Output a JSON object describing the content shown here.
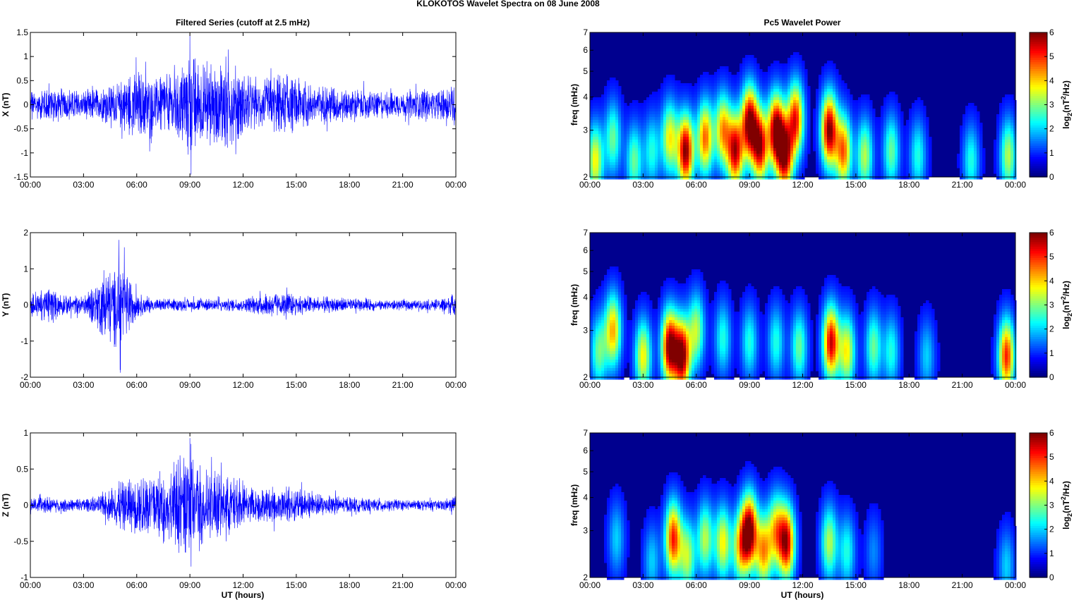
{
  "figure": {
    "suptitle": "KLOKOTOS Wavelet Spectra on 08 June      2008",
    "left_title": "Filtered Series (cutoff at 2.5 mHz)",
    "right_title": "Pc5 Wavelet Power",
    "xlabel": "UT (hours)"
  },
  "colors": {
    "trace": "#0000ff",
    "axis": "#000000",
    "grid_bg": "#ffffff"
  },
  "chart_data": [
    {
      "type": "line",
      "ylabel": "X (nT)",
      "xlim": [
        0,
        24
      ],
      "ylim": [
        -1.5,
        1.5
      ],
      "xticks": [
        "00:00",
        "03:00",
        "06:00",
        "09:00",
        "12:00",
        "15:00",
        "18:00",
        "21:00",
        "00:00"
      ],
      "yticks": [
        1.5,
        1,
        0.5,
        0,
        -0.5,
        -1,
        -1.5
      ],
      "ytick_labels": [
        "1.5",
        "1",
        "0.5",
        "0",
        "-0.5",
        "-1",
        "-1.5"
      ],
      "envelope_hours": [
        0,
        1,
        2,
        3,
        4,
        5,
        6,
        7,
        8,
        9,
        10,
        11,
        12,
        13,
        14,
        15,
        16,
        17,
        18,
        19,
        20,
        21,
        22,
        23,
        24
      ],
      "envelope_amplitude": [
        0.3,
        0.35,
        0.3,
        0.25,
        0.3,
        0.4,
        0.65,
        0.5,
        0.55,
        1.0,
        0.7,
        0.9,
        0.55,
        0.45,
        0.55,
        0.5,
        0.35,
        0.35,
        0.3,
        0.25,
        0.25,
        0.2,
        0.3,
        0.25,
        0.4
      ],
      "peak_max": 1.45,
      "peak_min": -1.45
    },
    {
      "type": "line",
      "ylabel": "Y (nT)",
      "xlim": [
        0,
        24
      ],
      "ylim": [
        -2,
        2
      ],
      "xticks": [
        "00:00",
        "03:00",
        "06:00",
        "09:00",
        "12:00",
        "15:00",
        "18:00",
        "21:00",
        "00:00"
      ],
      "yticks": [
        2,
        1,
        0,
        -1,
        -2
      ],
      "ytick_labels": [
        "2",
        "1",
        "0",
        "-1",
        "-2"
      ],
      "envelope_hours": [
        0,
        1,
        2,
        3,
        4,
        5,
        6,
        7,
        8,
        9,
        10,
        11,
        12,
        13,
        14,
        15,
        16,
        17,
        18,
        19,
        20,
        21,
        22,
        23,
        24
      ],
      "envelope_amplitude": [
        0.3,
        0.45,
        0.25,
        0.2,
        0.7,
        1.1,
        0.3,
        0.15,
        0.15,
        0.15,
        0.15,
        0.15,
        0.15,
        0.25,
        0.3,
        0.25,
        0.2,
        0.2,
        0.15,
        0.15,
        0.12,
        0.12,
        0.12,
        0.15,
        0.3
      ],
      "peak_max": 1.8,
      "peak_min": -1.8
    },
    {
      "type": "line",
      "ylabel": "Z (nT)",
      "xlim": [
        0,
        24
      ],
      "ylim": [
        -1,
        1
      ],
      "xticks": [
        "00:00",
        "03:00",
        "06:00",
        "09:00",
        "12:00",
        "15:00",
        "18:00",
        "21:00",
        "00:00"
      ],
      "yticks": [
        1,
        0.5,
        0,
        -0.5,
        -1
      ],
      "ytick_labels": [
        "1",
        "0.5",
        "0",
        "-0.5",
        "-1"
      ],
      "envelope_hours": [
        0,
        1,
        2,
        3,
        4,
        5,
        6,
        7,
        8,
        9,
        10,
        11,
        12,
        13,
        14,
        15,
        16,
        17,
        18,
        19,
        20,
        21,
        22,
        23,
        24
      ],
      "envelope_amplitude": [
        0.08,
        0.1,
        0.08,
        0.08,
        0.12,
        0.3,
        0.35,
        0.4,
        0.5,
        0.7,
        0.45,
        0.4,
        0.25,
        0.2,
        0.22,
        0.2,
        0.15,
        0.12,
        0.1,
        0.08,
        0.08,
        0.06,
        0.06,
        0.06,
        0.1
      ],
      "peak_max": 0.93,
      "peak_min": -0.85
    },
    {
      "type": "heatmap",
      "ylabel": "freq (mHz)",
      "xlim": [
        0,
        24
      ],
      "ylim": [
        2,
        7
      ],
      "yscale": "log",
      "xticks": [
        "00:00",
        "03:00",
        "06:00",
        "09:00",
        "12:00",
        "15:00",
        "18:00",
        "21:00",
        "00:00"
      ],
      "yticks": [
        2,
        3,
        4,
        5,
        6,
        7
      ],
      "colorbar": {
        "label": "log2(nT²/Hz)",
        "label_base": "log",
        "label_sub": "2",
        "label_mid": "(nT",
        "label_sup": "2",
        "label_end": "/Hz)",
        "ticks": [
          0,
          1,
          2,
          3,
          4,
          5,
          6
        ],
        "colormap": "jet"
      },
      "blobs": [
        {
          "t": 0.3,
          "f": 2.3,
          "p": 3.5
        },
        {
          "t": 1.3,
          "f": 2.8,
          "p": 2.5
        },
        {
          "t": 2.5,
          "f": 2.3,
          "p": 2.5
        },
        {
          "t": 3.5,
          "f": 2.5,
          "p": 2.0
        },
        {
          "t": 4.5,
          "f": 2.8,
          "p": 3.5
        },
        {
          "t": 5.4,
          "f": 2.5,
          "p": 6.0
        },
        {
          "t": 6.5,
          "f": 2.8,
          "p": 4.5
        },
        {
          "t": 7.5,
          "f": 3.0,
          "p": 4.0
        },
        {
          "t": 8.2,
          "f": 2.5,
          "p": 5.5
        },
        {
          "t": 9.0,
          "f": 3.2,
          "p": 6.0
        },
        {
          "t": 9.6,
          "f": 2.6,
          "p": 5.5
        },
        {
          "t": 10.5,
          "f": 3.0,
          "p": 6.0
        },
        {
          "t": 11.0,
          "f": 2.4,
          "p": 5.5
        },
        {
          "t": 11.6,
          "f": 3.3,
          "p": 5.0
        },
        {
          "t": 13.5,
          "f": 3.0,
          "p": 6.0
        },
        {
          "t": 14.3,
          "f": 2.5,
          "p": 4.5
        },
        {
          "t": 15.5,
          "f": 2.4,
          "p": 3.0
        },
        {
          "t": 17.0,
          "f": 2.5,
          "p": 2.5
        },
        {
          "t": 18.5,
          "f": 2.4,
          "p": 2.0
        },
        {
          "t": 21.5,
          "f": 2.3,
          "p": 2.0
        },
        {
          "t": 23.6,
          "f": 2.4,
          "p": 3.0
        }
      ]
    },
    {
      "type": "heatmap",
      "ylabel": "freq (mHz)",
      "xlim": [
        0,
        24
      ],
      "ylim": [
        2,
        7
      ],
      "yscale": "log",
      "xticks": [
        "00:00",
        "03:00",
        "06:00",
        "09:00",
        "12:00",
        "15:00",
        "18:00",
        "21:00",
        "00:00"
      ],
      "yticks": [
        2,
        3,
        4,
        5,
        6,
        7
      ],
      "colorbar": {
        "label": "log2(nT²/Hz)",
        "label_base": "log",
        "label_sub": "2",
        "label_mid": "(nT",
        "label_sup": "2",
        "label_end": "/Hz)",
        "ticks": [
          0,
          1,
          2,
          3,
          4,
          5,
          6
        ],
        "colormap": "jet"
      },
      "blobs": [
        {
          "t": 0.5,
          "f": 2.5,
          "p": 2.5
        },
        {
          "t": 1.3,
          "f": 3.0,
          "p": 4.0
        },
        {
          "t": 3.0,
          "f": 2.4,
          "p": 3.5
        },
        {
          "t": 4.5,
          "f": 2.6,
          "p": 6.0
        },
        {
          "t": 5.2,
          "f": 2.4,
          "p": 6.0
        },
        {
          "t": 6.0,
          "f": 3.0,
          "p": 3.0
        },
        {
          "t": 7.5,
          "f": 2.8,
          "p": 2.0
        },
        {
          "t": 9.0,
          "f": 2.7,
          "p": 2.0
        },
        {
          "t": 10.5,
          "f": 2.7,
          "p": 2.0
        },
        {
          "t": 11.8,
          "f": 2.6,
          "p": 2.5
        },
        {
          "t": 13.6,
          "f": 2.7,
          "p": 5.5
        },
        {
          "t": 14.5,
          "f": 2.5,
          "p": 3.5
        },
        {
          "t": 16.0,
          "f": 2.6,
          "p": 2.5
        },
        {
          "t": 17.0,
          "f": 2.5,
          "p": 2.0
        },
        {
          "t": 19.0,
          "f": 2.4,
          "p": 1.5
        },
        {
          "t": 23.5,
          "f": 2.4,
          "p": 5.0
        }
      ]
    },
    {
      "type": "heatmap",
      "ylabel": "freq (mHz)",
      "xlim": [
        0,
        24
      ],
      "ylim": [
        2,
        7
      ],
      "yscale": "log",
      "xticks": [
        "00:00",
        "03:00",
        "06:00",
        "09:00",
        "12:00",
        "15:00",
        "18:00",
        "21:00",
        "00:00"
      ],
      "yticks": [
        2,
        3,
        4,
        5,
        6,
        7
      ],
      "colorbar": {
        "label": "log2(nT²/Hz)",
        "label_base": "log",
        "label_sub": "2",
        "label_mid": "(nT",
        "label_sup": "2",
        "label_end": "/Hz)",
        "ticks": [
          0,
          1,
          2,
          3,
          4,
          5,
          6
        ],
        "colormap": "jet"
      },
      "blobs": [
        {
          "t": 1.5,
          "f": 2.8,
          "p": 1.5
        },
        {
          "t": 3.5,
          "f": 2.3,
          "p": 1.5
        },
        {
          "t": 4.7,
          "f": 2.8,
          "p": 5.0
        },
        {
          "t": 5.5,
          "f": 2.4,
          "p": 3.0
        },
        {
          "t": 6.5,
          "f": 2.8,
          "p": 3.0
        },
        {
          "t": 7.5,
          "f": 2.7,
          "p": 3.5
        },
        {
          "t": 8.5,
          "f": 2.6,
          "p": 3.5
        },
        {
          "t": 9.0,
          "f": 3.0,
          "p": 6.0
        },
        {
          "t": 9.8,
          "f": 2.5,
          "p": 4.0
        },
        {
          "t": 10.5,
          "f": 3.0,
          "p": 3.5
        },
        {
          "t": 11.1,
          "f": 2.7,
          "p": 5.5
        },
        {
          "t": 13.5,
          "f": 2.7,
          "p": 3.0
        },
        {
          "t": 14.5,
          "f": 2.5,
          "p": 2.0
        },
        {
          "t": 16.0,
          "f": 2.5,
          "p": 1.0
        },
        {
          "t": 23.5,
          "f": 2.2,
          "p": 1.5
        }
      ]
    }
  ]
}
